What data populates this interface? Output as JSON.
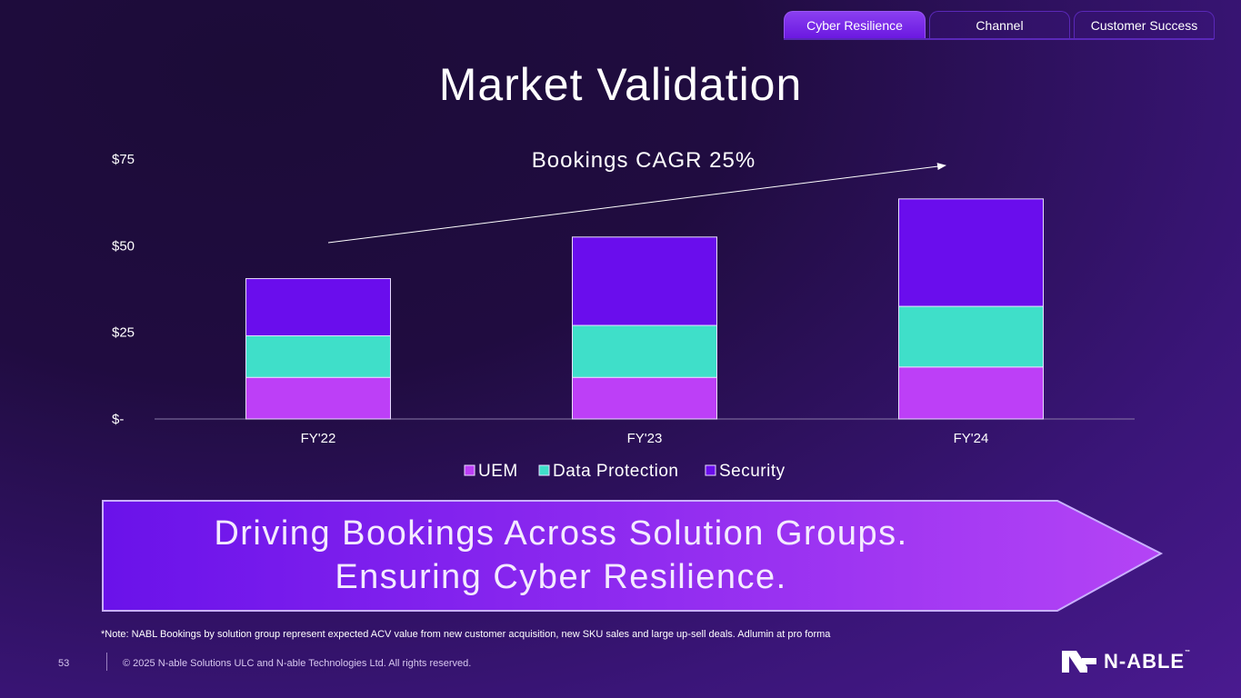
{
  "tabs": [
    {
      "label": "Cyber Resilience",
      "active": true
    },
    {
      "label": "Channel",
      "active": false
    },
    {
      "label": "Customer Success",
      "active": false
    }
  ],
  "title": "Market Validation",
  "chart_data": {
    "type": "bar",
    "stacked": true,
    "categories": [
      "FY'22",
      "FY'23",
      "FY'24"
    ],
    "series": [
      {
        "name": "UEM",
        "color": "#bd3ff7",
        "values": [
          12,
          12,
          15
        ]
      },
      {
        "name": "Data Protection",
        "color": "#3fdfc9",
        "values": [
          12,
          15,
          17.5
        ]
      },
      {
        "name": "Security",
        "color": "#6a0ded",
        "values": [
          16.5,
          25.5,
          31
        ]
      }
    ],
    "y_ticks": [
      "$-",
      "$25",
      "$50",
      "$75"
    ],
    "y_tick_values": [
      0,
      25,
      50,
      75
    ],
    "ylim": [
      0,
      75
    ],
    "annotation": "Bookings CAGR 25%",
    "legend_position": "bottom",
    "grid": false
  },
  "banner": {
    "line1": "Driving Bookings Across Solution Groups.",
    "line2": "Ensuring Cyber Resilience."
  },
  "note": "*Note: NABL Bookings by solution group represent expected ACV value from new customer acquisition, new SKU sales and large up-sell deals. Adlumin at pro forma",
  "footer": {
    "page_number": "53",
    "copyright": "© 2025 N-able Solutions ULC and N-able Technologies Ltd. All rights reserved."
  },
  "logo": {
    "text": "N-ABLE",
    "tm": "™"
  }
}
